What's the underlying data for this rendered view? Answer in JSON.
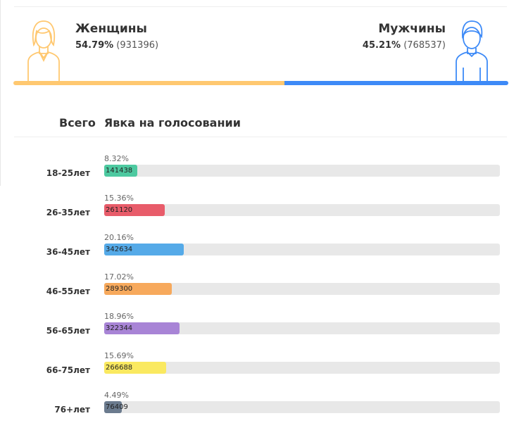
{
  "gender": {
    "female": {
      "title": "Женщины",
      "percent": "54.79%",
      "count": "(931396)",
      "share": 0.5479,
      "color": "#ffc870"
    },
    "male": {
      "title": "Мужчины",
      "percent": "45.21%",
      "count": "(768537)",
      "share": 0.4521,
      "color": "#3d8af7"
    }
  },
  "tabs": {
    "total": "Всего",
    "turnout": "Явка на голосовании"
  },
  "ages": [
    {
      "label": "18-25лет",
      "percent": "8.32%",
      "count": "141438",
      "fraction": 0.0832,
      "color": "#4dc9a0"
    },
    {
      "label": "26-35лет",
      "percent": "15.36%",
      "count": "261120",
      "fraction": 0.1536,
      "color": "#e85c6a"
    },
    {
      "label": "36-45лет",
      "percent": "20.16%",
      "count": "342634",
      "fraction": 0.2016,
      "color": "#55aae8"
    },
    {
      "label": "46-55лет",
      "percent": "17.02%",
      "count": "289300",
      "fraction": 0.1702,
      "color": "#f7a95c"
    },
    {
      "label": "56-65лет",
      "percent": "18.96%",
      "count": "322344",
      "fraction": 0.1896,
      "color": "#a884d6"
    },
    {
      "label": "66-75лет",
      "percent": "15.69%",
      "count": "266688",
      "fraction": 0.1569,
      "color": "#fae960"
    },
    {
      "label": "76+лет",
      "percent": "4.49%",
      "count": "76409",
      "fraction": 0.0449,
      "color": "#6b7b8e"
    }
  ]
}
